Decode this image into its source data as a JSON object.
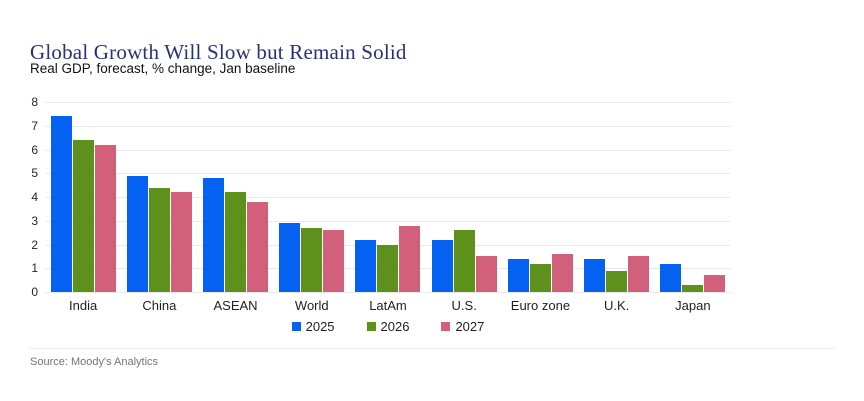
{
  "header": {
    "title": "Global Growth Will Slow but Remain Solid",
    "subtitle": "Real GDP, forecast, % change, Jan baseline"
  },
  "chart_data": {
    "type": "bar",
    "title": "Global Growth Will Slow but Remain Solid",
    "subtitle": "Real GDP, forecast, % change, Jan baseline",
    "categories": [
      "India",
      "China",
      "ASEAN",
      "World",
      "LatAm",
      "U.S.",
      "Euro zone",
      "U.K.",
      "Japan"
    ],
    "series": [
      {
        "name": "2025",
        "color": "#0561f2",
        "values": [
          7.4,
          4.9,
          4.8,
          2.9,
          2.2,
          2.2,
          1.4,
          1.4,
          1.2
        ]
      },
      {
        "name": "2026",
        "color": "#5e911c",
        "values": [
          6.4,
          4.4,
          4.2,
          2.7,
          2.0,
          2.6,
          1.2,
          0.9,
          0.3
        ]
      },
      {
        "name": "2027",
        "color": "#d2607a",
        "values": [
          6.2,
          4.2,
          3.8,
          2.6,
          2.8,
          1.5,
          1.6,
          1.5,
          0.7
        ]
      }
    ],
    "xlabel": "",
    "ylabel": "",
    "ylim": [
      0,
      8
    ],
    "yticks": [
      0,
      1,
      2,
      3,
      4,
      5,
      6,
      7,
      8
    ],
    "grid": true,
    "legend_position": "bottom-center"
  },
  "source": {
    "text": "Source: Moody's Analytics"
  },
  "colors": {
    "title": "#283178",
    "series_2025": "#0561f2",
    "series_2026": "#5e911c",
    "series_2027": "#d2607a",
    "gridline": "#e9e9e9",
    "source_text": "#757575"
  }
}
